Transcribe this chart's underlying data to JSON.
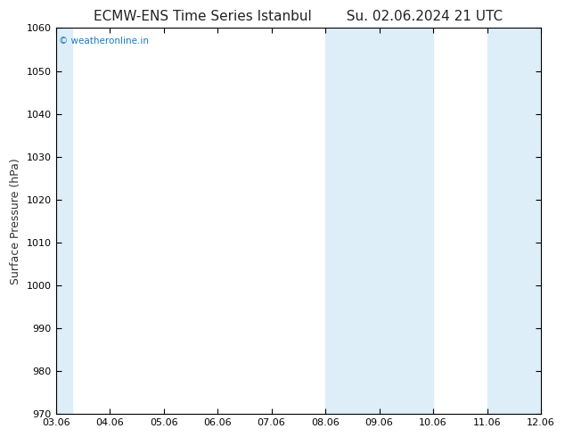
{
  "title_left": "ECMW-ENS Time Series Istanbul",
  "title_right": "Su. 02.06.2024 21 UTC",
  "ylabel": "Surface Pressure (hPa)",
  "ylim": [
    970,
    1060
  ],
  "yticks": [
    970,
    980,
    990,
    1000,
    1010,
    1020,
    1030,
    1040,
    1050,
    1060
  ],
  "xticks": [
    "03.06",
    "04.06",
    "05.06",
    "06.06",
    "07.06",
    "08.06",
    "09.06",
    "10.06",
    "11.06",
    "12.06"
  ],
  "plot_bg_color": "#ffffff",
  "band_color": "#ddeef8",
  "shade_bands": [
    {
      "xstart": 0,
      "xend": 0.5
    },
    {
      "xstart": 5.0,
      "xend": 6.0
    },
    {
      "xstart": 6.0,
      "xend": 7.0
    },
    {
      "xstart": 8.0,
      "xend": 9.0
    },
    {
      "xstart": 9.0,
      "xend": 9.5
    }
  ],
  "watermark": "© weatheronline.in",
  "watermark_color": "#1a7abf",
  "title_fontsize": 11,
  "tick_fontsize": 8,
  "ylabel_fontsize": 9,
  "figure_bg_color": "#ffffff",
  "spine_color": "#000000",
  "tick_color": "#000000"
}
